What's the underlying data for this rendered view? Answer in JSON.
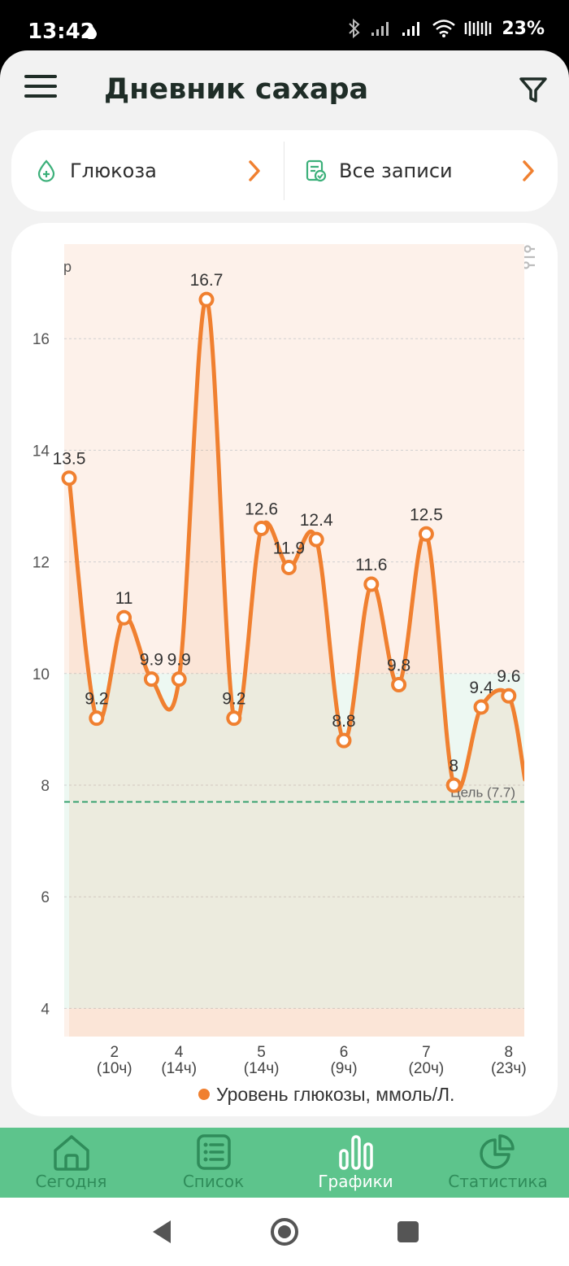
{
  "status_bar": {
    "time": "13:42",
    "battery": "23%"
  },
  "header": {
    "title": "Дневник сахара",
    "menu_icon": "hamburger-menu-icon",
    "filter_icon": "filter-funnel-icon"
  },
  "selectors": {
    "left_label": "Глюкоза",
    "right_label": "Все записи"
  },
  "chart_tools": {
    "export_icon": "share-upload-icon",
    "settings_icon": "sliders-icon"
  },
  "colors": {
    "accent": "#f08030",
    "nav_bg": "#5dc48c",
    "nav_label": "#2f8c5a",
    "nav_active": "#ffffff",
    "title": "#1f2d27",
    "target_line": "#2f9e6a"
  },
  "chart_data": {
    "type": "line",
    "ylabel": "р",
    "ylim": [
      3.5,
      17.5
    ],
    "yticks": [
      "4",
      "6",
      "8",
      "10",
      "12",
      "14",
      "16"
    ],
    "xticks": [
      {
        "day": "2",
        "time": "(10ч)"
      },
      {
        "day": "4",
        "time": "(14ч)"
      },
      {
        "day": "5",
        "time": "(14ч)"
      },
      {
        "day": "6",
        "time": "(9ч)"
      },
      {
        "day": "7",
        "time": "(20ч)"
      },
      {
        "day": "8",
        "time": "(23ч)"
      }
    ],
    "values": [
      13.5,
      9.2,
      11,
      9.9,
      9.9,
      16.7,
      9.2,
      12.6,
      11.9,
      12.4,
      8.8,
      11.6,
      9.8,
      12.5,
      8,
      9.4,
      9.6
    ],
    "labels": [
      "13.5",
      "9.2",
      "11",
      "9.9",
      "9.9",
      "16.7",
      "9.2",
      "12.6",
      "11.9",
      "12.4",
      "8.8",
      "11.6",
      "9.8",
      "12.5",
      "8",
      "9.4",
      "9.6"
    ],
    "trailing_value": 8.1,
    "target_line": 7.7,
    "target_label": "Цель (7.7)",
    "bands": {
      "low": 4.0,
      "target_high": 10.0
    },
    "grid": true,
    "legend": "bottom",
    "series_name": "Уровень глюкозы, ммоль/Л."
  },
  "nav": {
    "items": [
      {
        "label": "Сегодня",
        "icon": "home-icon"
      },
      {
        "label": "Список",
        "icon": "list-icon"
      },
      {
        "label": "Графики",
        "icon": "bar-chart-icon"
      },
      {
        "label": "Статистика",
        "icon": "pie-chart-icon"
      }
    ]
  },
  "system_nav": {
    "back_icon": "back-triangle-icon",
    "home_icon": "home-circle-icon",
    "recents_icon": "recents-square-icon"
  }
}
